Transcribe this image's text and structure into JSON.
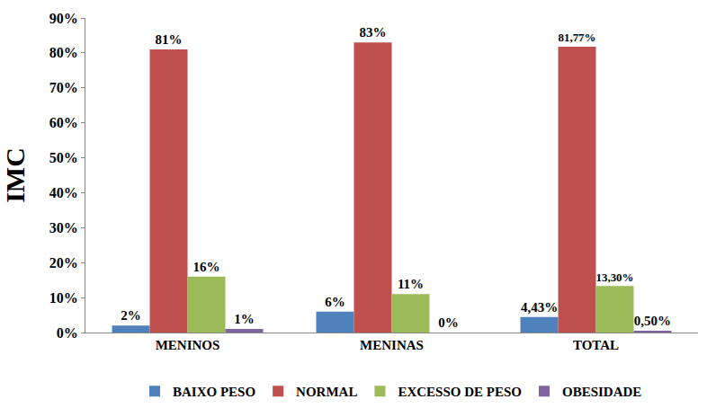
{
  "chart_data": {
    "type": "bar",
    "y_label": "IMC",
    "categories": [
      "MENINOS",
      "MENINAS",
      "TOTAL"
    ],
    "series": [
      {
        "name": "BAIXO PESO",
        "color": "#4f81bd",
        "values": [
          2,
          6,
          4.43
        ],
        "value_labels": [
          "2%",
          "6%",
          "4,43%"
        ]
      },
      {
        "name": "NORMAL",
        "color": "#c0504d",
        "values": [
          81,
          83,
          81.77
        ],
        "value_labels": [
          "81%",
          "83%",
          "81,77%"
        ]
      },
      {
        "name": "EXCESSO DE PESO",
        "color": "#9bbb59",
        "values": [
          16,
          11,
          13.3
        ],
        "value_labels": [
          "16%",
          "11%",
          "13,30%"
        ]
      },
      {
        "name": "OBESIDADE",
        "color": "#8064a2",
        "values": [
          1,
          0,
          0.5
        ],
        "value_labels": [
          "1%",
          "0%",
          "0,50%"
        ]
      }
    ],
    "ylim": [
      0,
      90
    ],
    "yticks": [
      {
        "value": 0,
        "label": "0%"
      },
      {
        "value": 10,
        "label": "10%"
      },
      {
        "value": 20,
        "label": "20%"
      },
      {
        "value": 30,
        "label": "30%"
      },
      {
        "value": 40,
        "label": "40%"
      },
      {
        "value": 50,
        "label": "50%"
      },
      {
        "value": 60,
        "label": "60%"
      },
      {
        "value": 70,
        "label": "70%"
      },
      {
        "value": 80,
        "label": "80%"
      },
      {
        "value": 90,
        "label": "90%"
      }
    ],
    "grid": false,
    "legend": "bottom",
    "data_labels": true
  }
}
